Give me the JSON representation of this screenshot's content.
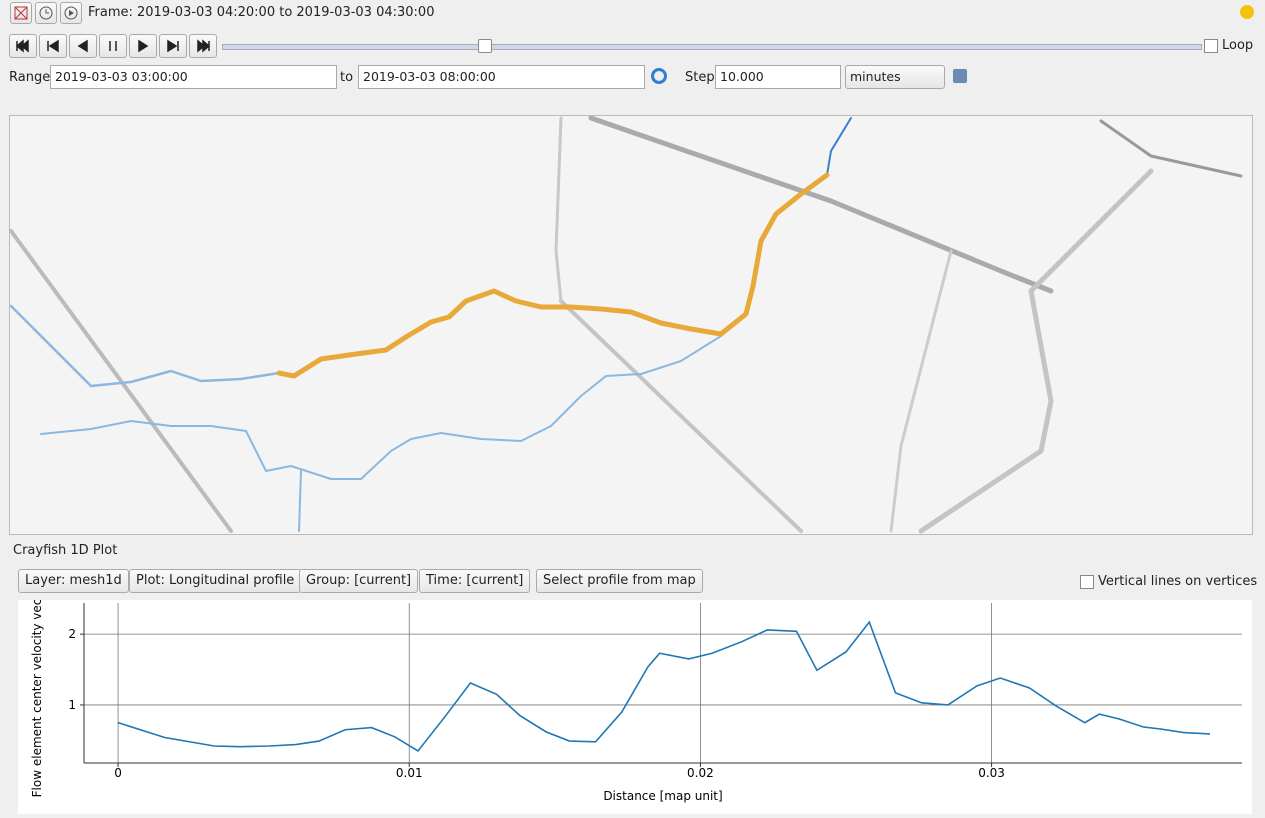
{
  "toolbar": {
    "frame": "Frame: 2019-03-03 04:20:00 to 2019-03-03 04:30:00",
    "loop": "Loop",
    "range_label": "Range",
    "range_from": "2019-03-03 03:00:00",
    "to_label": "to",
    "range_to": "2019-03-03 08:00:00",
    "step_label": "Step",
    "step_value": "10.000",
    "step_unit": "minutes"
  },
  "panel": {
    "title": "Crayfish 1D Plot",
    "buttons": [
      "Layer: mesh1d",
      "Plot: Longitudinal profile",
      "Group: [current]",
      "Time: [current]",
      "Select profile from map"
    ],
    "checkbox": "Vertical lines on vertices"
  },
  "chart_data": {
    "type": "line",
    "x_label": "Distance [map unit]",
    "y_label": "Flow element center velocity vec",
    "x": [
      0,
      0.0016,
      0.0033,
      0.0042,
      0.0052,
      0.0061,
      0.0069,
      0.0078,
      0.0087,
      0.0095,
      0.0103,
      0.0112,
      0.0121,
      0.013,
      0.0138,
      0.0147,
      0.0155,
      0.0164,
      0.0173,
      0.0182,
      0.0186,
      0.0196,
      0.0204,
      0.0214,
      0.0223,
      0.0233,
      0.024,
      0.025,
      0.0258,
      0.0267,
      0.0276,
      0.0285,
      0.0295,
      0.0303,
      0.0313,
      0.0322,
      0.0332,
      0.0337,
      0.0344,
      0.0352,
      0.0358,
      0.0366,
      0.0375
    ],
    "series": [
      {
        "color": "#1f77b4",
        "values": [
          0.75,
          0.54,
          0.42,
          0.41,
          0.42,
          0.44,
          0.49,
          0.65,
          0.68,
          0.55,
          0.35,
          0.82,
          1.31,
          1.15,
          0.85,
          0.62,
          0.49,
          0.48,
          0.9,
          1.54,
          1.73,
          1.65,
          1.73,
          1.89,
          2.06,
          2.04,
          1.49,
          1.75,
          2.17,
          1.17,
          1.03,
          1.0,
          1.27,
          1.38,
          1.24,
          0.99,
          0.75,
          0.87,
          0.8,
          0.69,
          0.66,
          0.61,
          0.59
        ]
      }
    ],
    "xlim": [
      -0.00117,
      0.0386
    ],
    "ylim": [
      0.18,
      2.44
    ],
    "xticks": [
      0,
      0.01,
      0.02,
      0.03
    ],
    "yticks": [
      1,
      2
    ],
    "grid": true
  }
}
